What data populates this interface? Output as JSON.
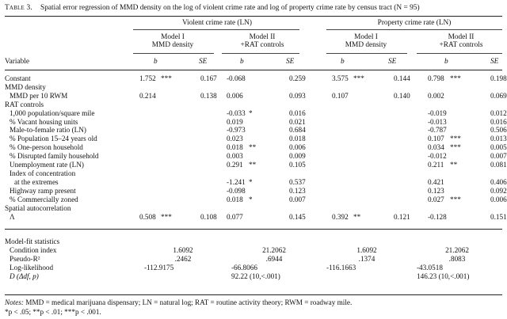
{
  "caption": {
    "label": "Table 3.",
    "text": "Spatial error regression of MMD density on the log of violent crime rate and log of property crime rate by census tract (N = 95)"
  },
  "header": {
    "violent": "Violent crime rate (LN)",
    "property": "Property crime rate (LN)",
    "model1_line1": "Model I",
    "model1_line2": "MMD density",
    "model2_line1": "Model II",
    "model2_line2": "+RAT controls",
    "variable": "Variable",
    "b": "b",
    "se": "SE"
  },
  "rows": [
    {
      "label": "Constant",
      "indent": 0,
      "cells": [
        "1.752",
        "***",
        "0.167",
        "-0.068",
        "",
        "0.259",
        "3.575",
        "***",
        "0.144",
        "0.798",
        "***",
        "0.198"
      ]
    },
    {
      "label": "MMD density",
      "indent": 0,
      "cells": [
        "",
        "",
        "",
        "",
        "",
        "",
        "",
        "",
        "",
        "",
        "",
        ""
      ]
    },
    {
      "label": "MMD per 10 RWM",
      "indent": 1,
      "cells": [
        "0.214",
        "",
        "0.138",
        "0.006",
        "",
        "0.093",
        "0.107",
        "",
        "0.140",
        "0.002",
        "",
        "0.069"
      ]
    },
    {
      "label": "RAT controls",
      "indent": 0,
      "cells": [
        "",
        "",
        "",
        "",
        "",
        "",
        "",
        "",
        "",
        "",
        "",
        ""
      ]
    },
    {
      "label": "1,000 population/square mile",
      "indent": 1,
      "cells": [
        "",
        "",
        "",
        "-0.033",
        "*",
        "0.016",
        "",
        "",
        "",
        "-0.019",
        "",
        "0.012"
      ]
    },
    {
      "label": "% Vacant housing units",
      "indent": 1,
      "cells": [
        "",
        "",
        "",
        "0.019",
        "",
        "0.021",
        "",
        "",
        "",
        "-0.013",
        "",
        "0.016"
      ]
    },
    {
      "label": "Male-to-female ratio (LN)",
      "indent": 1,
      "cells": [
        "",
        "",
        "",
        "-0.973",
        "",
        "0.684",
        "",
        "",
        "",
        "-0.787",
        "",
        "0.506"
      ]
    },
    {
      "label": "% Population 15–24 years old",
      "indent": 1,
      "cells": [
        "",
        "",
        "",
        "0.023",
        "",
        "0.018",
        "",
        "",
        "",
        "0.107",
        "***",
        "0.013"
      ]
    },
    {
      "label": "% One-person household",
      "indent": 1,
      "cells": [
        "",
        "",
        "",
        "0.018",
        "**",
        "0.006",
        "",
        "",
        "",
        "0.034",
        "***",
        "0.005"
      ]
    },
    {
      "label": "% Disrupted family household",
      "indent": 1,
      "cells": [
        "",
        "",
        "",
        "0.003",
        "",
        "0.009",
        "",
        "",
        "",
        "-0.012",
        "",
        "0.007"
      ]
    },
    {
      "label": "Unemployment rate (LN)",
      "indent": 1,
      "cells": [
        "",
        "",
        "",
        "0.291",
        "**",
        "0.105",
        "",
        "",
        "",
        "0.211",
        "**",
        "0.081"
      ]
    },
    {
      "label": "Index of concentration",
      "indent": 1,
      "cells": [
        "",
        "",
        "",
        "",
        "",
        "",
        "",
        "",
        "",
        "",
        "",
        ""
      ]
    },
    {
      "label": "at the extremes",
      "indent": 2,
      "cells": [
        "",
        "",
        "",
        "-1.241",
        "*",
        "0.537",
        "",
        "",
        "",
        "0.421",
        "",
        "0.406"
      ]
    },
    {
      "label": "Highway ramp present",
      "indent": 1,
      "cells": [
        "",
        "",
        "",
        "-0.098",
        "",
        "0.123",
        "",
        "",
        "",
        "0.123",
        "",
        "0.092"
      ]
    },
    {
      "label": "% Commercially zoned",
      "indent": 1,
      "cells": [
        "",
        "",
        "",
        "0.018",
        "*",
        "0.007",
        "",
        "",
        "",
        "0.027",
        "***",
        "0.006"
      ]
    },
    {
      "label": "Spatial autocorrelation",
      "indent": 0,
      "cells": [
        "",
        "",
        "",
        "",
        "",
        "",
        "",
        "",
        "",
        "",
        "",
        ""
      ]
    },
    {
      "label": "Λ",
      "indent": 1,
      "cells": [
        "0.508",
        "***",
        "0.108",
        "0.077",
        "",
        "0.145",
        "0.392",
        "**",
        "0.121",
        "-0.128",
        "",
        "0.151"
      ]
    }
  ],
  "fit": {
    "title": "Model-fit statistics",
    "rows": [
      {
        "label": "Condition index",
        "values": [
          "1.6092",
          "21.2062",
          "1.6092",
          "21.2062"
        ],
        "align": "center"
      },
      {
        "label": "Pseudo-R²",
        "values": [
          ".2462",
          ".6944",
          ".1374",
          ".8083"
        ],
        "align": "center"
      },
      {
        "label": "Log-likelihood",
        "values": [
          "-112.9175",
          "-66.8066",
          "-116.1663",
          "-43.0518"
        ],
        "align": "left"
      },
      {
        "label": "D (Δdf, p)",
        "values": [
          "",
          "92.22 (10,<.001)",
          "",
          "146.23 (10,<.001)"
        ],
        "align": "left"
      }
    ]
  },
  "notes": {
    "line1_prefix": "Notes:",
    "line1_text": " MMD = medical marijuana dispensary; LN = natural log; RAT = routine activity theory; RWM = roadway mile.",
    "line2": "*p < .05; **p < .01; ***p < .001."
  }
}
